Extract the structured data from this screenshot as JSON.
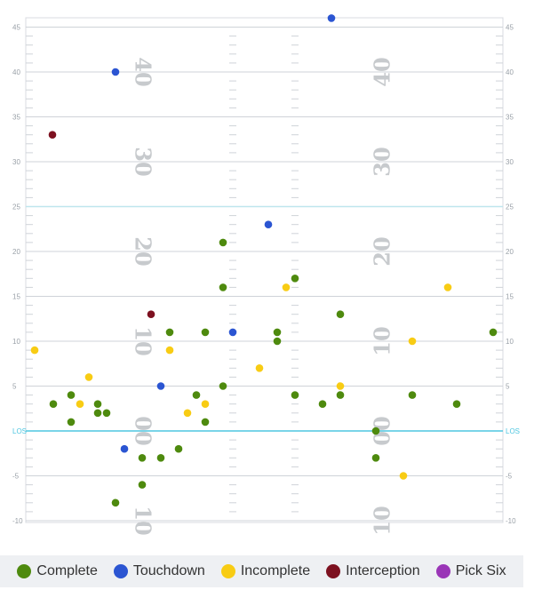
{
  "chart_data": {
    "type": "scatter",
    "title": "",
    "xlabel": "",
    "ylabel": "",
    "ylim": [
      -10,
      46
    ],
    "y_ticks": [
      45,
      40,
      35,
      30,
      25,
      20,
      15,
      10,
      5,
      "LOS",
      -5,
      -10
    ],
    "los_label": "LOS",
    "yard_markers_left": [
      {
        "label": "10",
        "y": -10
      },
      {
        "label": "00",
        "y": 0
      },
      {
        "label": "10",
        "y": 10
      },
      {
        "label": "20",
        "y": 20
      },
      {
        "label": "30",
        "y": 30
      },
      {
        "label": "40",
        "y": 40
      }
    ],
    "yard_markers_right": [
      {
        "label": "10",
        "y": -10
      },
      {
        "label": "00",
        "y": 0
      },
      {
        "label": "10",
        "y": 10
      },
      {
        "label": "20",
        "y": 20
      },
      {
        "label": "30",
        "y": 30
      },
      {
        "label": "40",
        "y": 40
      }
    ],
    "series": [
      {
        "name": "Complete",
        "color": "#4e8a0e",
        "points": [
          {
            "x": 60,
            "y": 3
          },
          {
            "x": 80,
            "y": 4
          },
          {
            "x": 80,
            "y": 1
          },
          {
            "x": 110,
            "y": 3
          },
          {
            "x": 110,
            "y": 2
          },
          {
            "x": 120,
            "y": 2
          },
          {
            "x": 130,
            "y": -8
          },
          {
            "x": 160,
            "y": -3
          },
          {
            "x": 160,
            "y": -6
          },
          {
            "x": 181,
            "y": -3
          },
          {
            "x": 191,
            "y": 11
          },
          {
            "x": 201,
            "y": -2
          },
          {
            "x": 221,
            "y": 4
          },
          {
            "x": 231,
            "y": 1
          },
          {
            "x": 231,
            "y": 11
          },
          {
            "x": 251,
            "y": 21
          },
          {
            "x": 251,
            "y": 16
          },
          {
            "x": 251,
            "y": 5
          },
          {
            "x": 312,
            "y": 11
          },
          {
            "x": 312,
            "y": 10
          },
          {
            "x": 332,
            "y": 17
          },
          {
            "x": 332,
            "y": 4
          },
          {
            "x": 363,
            "y": 3
          },
          {
            "x": 383,
            "y": 13
          },
          {
            "x": 383,
            "y": 4
          },
          {
            "x": 423,
            "y": 0
          },
          {
            "x": 423,
            "y": -3
          },
          {
            "x": 464,
            "y": 4
          },
          {
            "x": 514,
            "y": 3
          },
          {
            "x": 555,
            "y": 11
          }
        ]
      },
      {
        "name": "Touchdown",
        "color": "#2b55d2",
        "points": [
          {
            "x": 373,
            "y": 46
          },
          {
            "x": 130,
            "y": 40
          },
          {
            "x": 302,
            "y": 23
          },
          {
            "x": 262,
            "y": 11
          },
          {
            "x": 181,
            "y": 5
          },
          {
            "x": 140,
            "y": -2
          }
        ]
      },
      {
        "name": "Incomplete",
        "color": "#f8cc14",
        "points": [
          {
            "x": 39,
            "y": 9
          },
          {
            "x": 90,
            "y": 3
          },
          {
            "x": 100,
            "y": 6
          },
          {
            "x": 191,
            "y": 9
          },
          {
            "x": 211,
            "y": 2
          },
          {
            "x": 231,
            "y": 3
          },
          {
            "x": 292,
            "y": 7
          },
          {
            "x": 322,
            "y": 16
          },
          {
            "x": 383,
            "y": 5
          },
          {
            "x": 454,
            "y": -5
          },
          {
            "x": 464,
            "y": 10
          },
          {
            "x": 504,
            "y": 16
          }
        ]
      },
      {
        "name": "Interception",
        "color": "#7d1120",
        "points": [
          {
            "x": 59,
            "y": 33
          },
          {
            "x": 170,
            "y": 13
          }
        ]
      },
      {
        "name": "Pick Six",
        "color": "#9a35b7",
        "points": []
      }
    ],
    "legend_position": "bottom"
  }
}
